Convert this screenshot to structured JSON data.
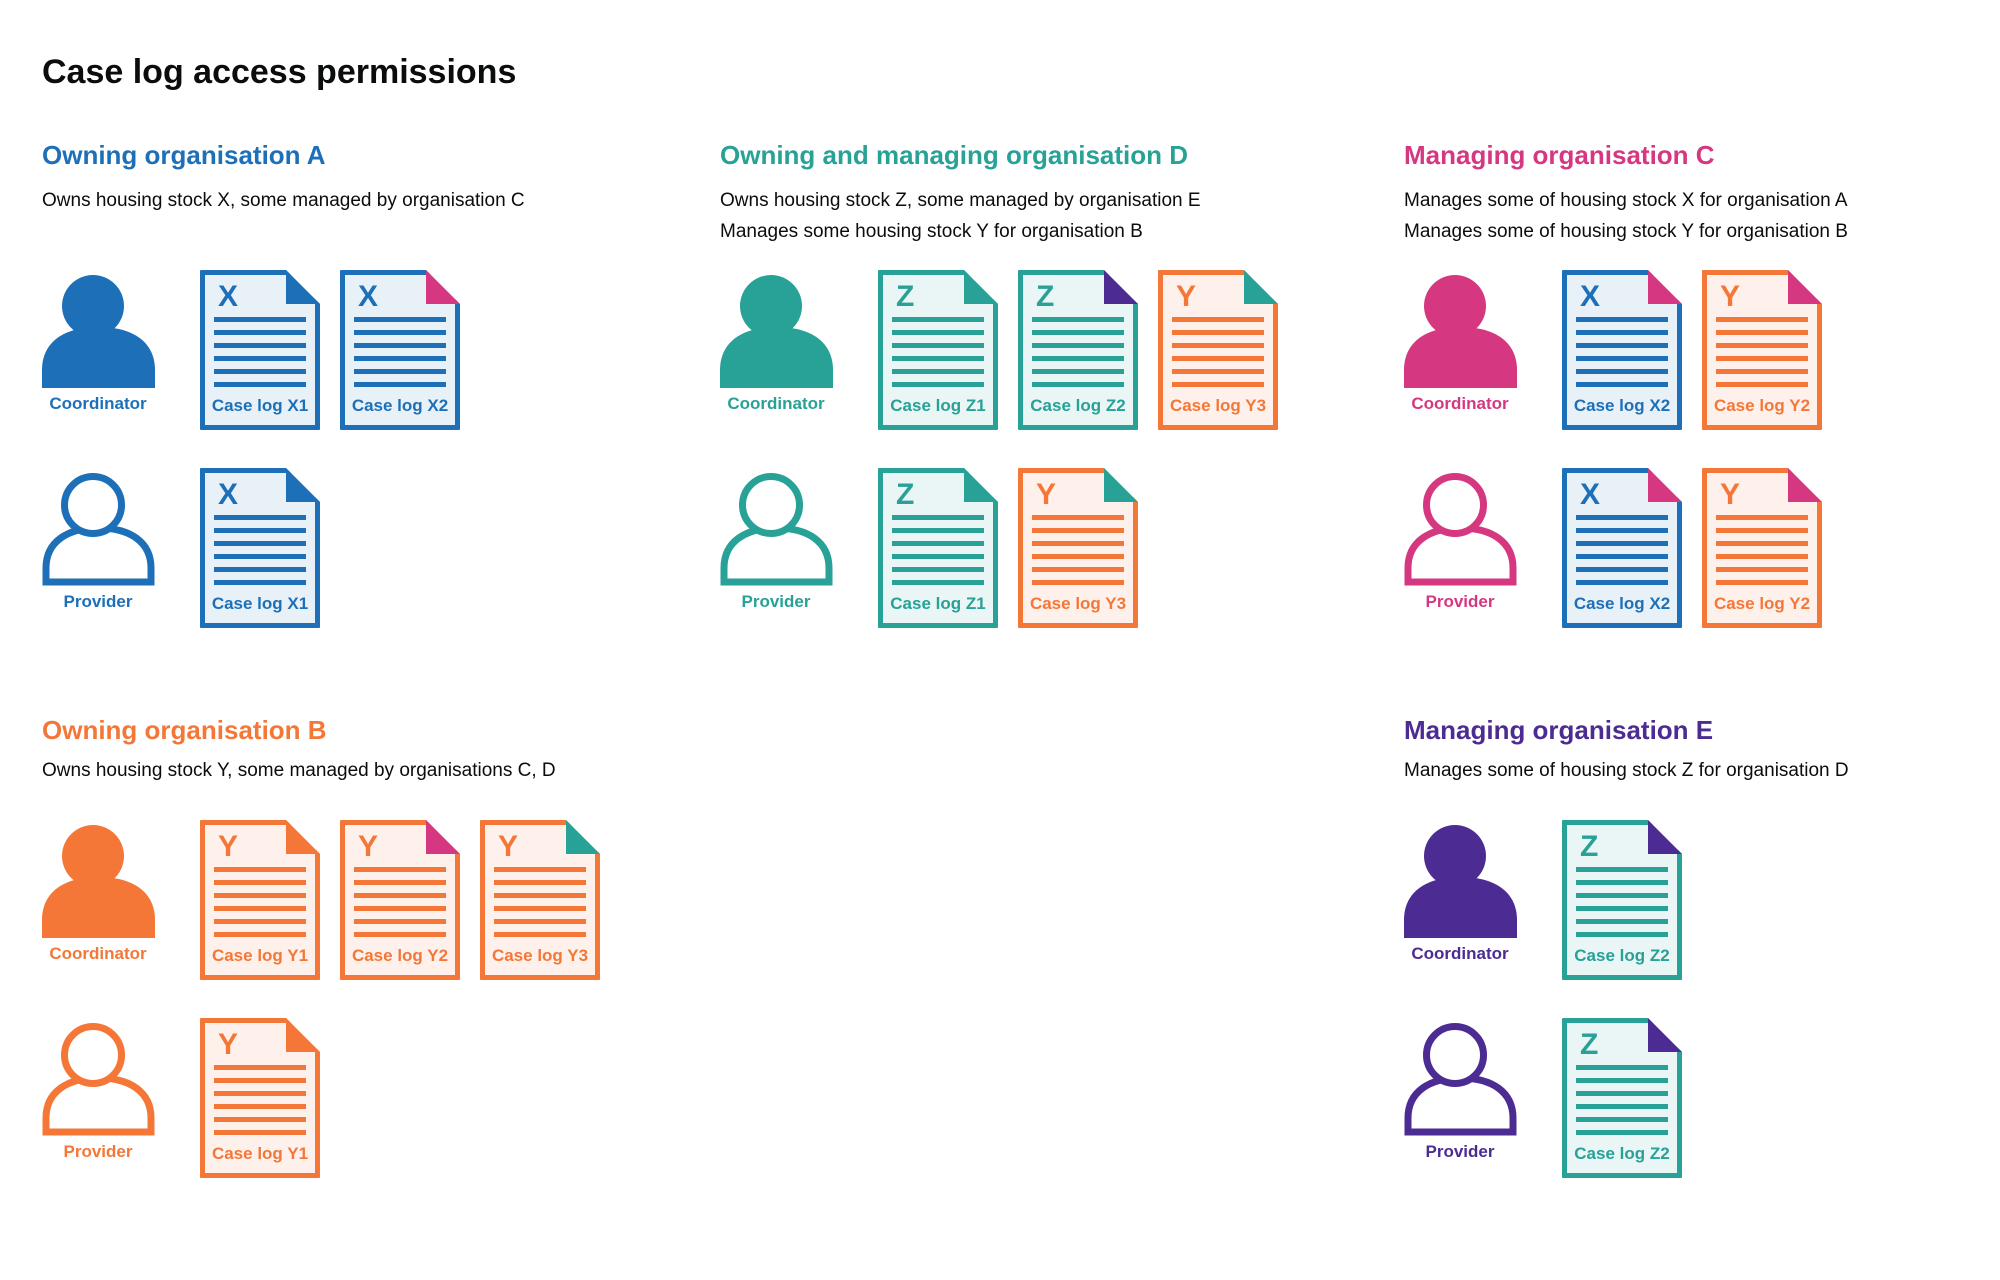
{
  "page_title": "Case log access permissions",
  "palette": {
    "blue": {
      "main": "#1d70b8",
      "tint": "#e8f1f8"
    },
    "teal": {
      "main": "#28a197",
      "tint": "#e9f6f5"
    },
    "orange": {
      "main": "#f47738",
      "tint": "#fef1eb"
    },
    "pink": {
      "main": "#d53880",
      "tint": "#fbebf2"
    },
    "purple": {
      "main": "#4c2c92",
      "tint": "#edeaf4"
    },
    "text": "#0b0c0c",
    "background": "#ffffff"
  },
  "actor_types": {
    "coordinator": {
      "label": "Coordinator",
      "style": "filled"
    },
    "provider": {
      "label": "Provider",
      "style": "outline"
    }
  },
  "sections": [
    {
      "id": "org-a",
      "slot": "top-left",
      "color": "blue",
      "title": "Owning organisation A",
      "description": [
        "Owns housing stock X, some managed by organisation C"
      ],
      "rows": [
        {
          "actor": "coordinator",
          "docs": [
            {
              "letter": "X",
              "label": "Case log X1",
              "doc_color": "blue",
              "fold_color": "blue"
            },
            {
              "letter": "X",
              "label": "Case log X2",
              "doc_color": "blue",
              "fold_color": "pink"
            }
          ]
        },
        {
          "actor": "provider",
          "docs": [
            {
              "letter": "X",
              "label": "Case log X1",
              "doc_color": "blue",
              "fold_color": "blue"
            }
          ]
        }
      ]
    },
    {
      "id": "org-d",
      "slot": "top-middle",
      "color": "teal",
      "title": "Owning and managing organisation D",
      "description": [
        "Owns housing stock Z, some managed by organisation E",
        "Manages some housing stock Y for organisation B"
      ],
      "rows": [
        {
          "actor": "coordinator",
          "docs": [
            {
              "letter": "Z",
              "label": "Case log Z1",
              "doc_color": "teal",
              "fold_color": "teal"
            },
            {
              "letter": "Z",
              "label": "Case log Z2",
              "doc_color": "teal",
              "fold_color": "purple"
            },
            {
              "letter": "Y",
              "label": "Case log Y3",
              "doc_color": "orange",
              "fold_color": "teal"
            }
          ]
        },
        {
          "actor": "provider",
          "docs": [
            {
              "letter": "Z",
              "label": "Case log Z1",
              "doc_color": "teal",
              "fold_color": "teal"
            },
            {
              "letter": "Y",
              "label": "Case log Y3",
              "doc_color": "orange",
              "fold_color": "teal"
            }
          ]
        }
      ]
    },
    {
      "id": "org-c",
      "slot": "top-right",
      "color": "pink",
      "title": "Managing organisation C",
      "description": [
        "Manages some of housing stock X for organisation A",
        "Manages some of housing stock Y for organisation B"
      ],
      "rows": [
        {
          "actor": "coordinator",
          "docs": [
            {
              "letter": "X",
              "label": "Case log X2",
              "doc_color": "blue",
              "fold_color": "pink"
            },
            {
              "letter": "Y",
              "label": "Case log Y2",
              "doc_color": "orange",
              "fold_color": "pink"
            }
          ]
        },
        {
          "actor": "provider",
          "docs": [
            {
              "letter": "X",
              "label": "Case log X2",
              "doc_color": "blue",
              "fold_color": "pink"
            },
            {
              "letter": "Y",
              "label": "Case log Y2",
              "doc_color": "orange",
              "fold_color": "pink"
            }
          ]
        }
      ]
    },
    {
      "id": "org-b",
      "slot": "bottom-left",
      "color": "orange",
      "title": "Owning organisation B",
      "description": [
        "Owns housing stock Y, some managed by organisations C, D"
      ],
      "rows": [
        {
          "actor": "coordinator",
          "docs": [
            {
              "letter": "Y",
              "label": "Case log Y1",
              "doc_color": "orange",
              "fold_color": "orange"
            },
            {
              "letter": "Y",
              "label": "Case log Y2",
              "doc_color": "orange",
              "fold_color": "pink"
            },
            {
              "letter": "Y",
              "label": "Case log Y3",
              "doc_color": "orange",
              "fold_color": "teal"
            }
          ]
        },
        {
          "actor": "provider",
          "docs": [
            {
              "letter": "Y",
              "label": "Case log Y1",
              "doc_color": "orange",
              "fold_color": "orange"
            }
          ]
        }
      ]
    },
    {
      "id": "org-e",
      "slot": "bottom-right",
      "color": "purple",
      "title": "Managing organisation E",
      "description": [
        "Manages some of housing stock Z for organisation D"
      ],
      "rows": [
        {
          "actor": "coordinator",
          "docs": [
            {
              "letter": "Z",
              "label": "Case log Z2",
              "doc_color": "teal",
              "fold_color": "purple"
            }
          ]
        },
        {
          "actor": "provider",
          "docs": [
            {
              "letter": "Z",
              "label": "Case log Z2",
              "doc_color": "teal",
              "fold_color": "purple"
            }
          ]
        }
      ]
    }
  ]
}
